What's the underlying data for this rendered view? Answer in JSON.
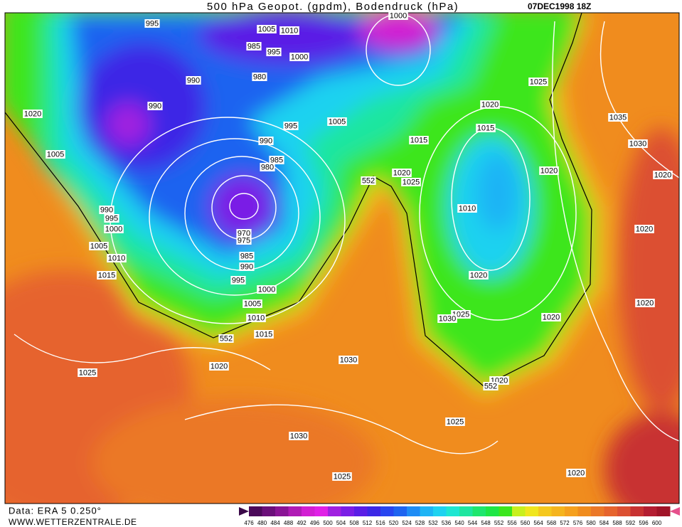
{
  "header": {
    "title": "500 hPa Geopot. (gpdm), Bodendruck (hPa)",
    "date": "07DEC1998 18Z"
  },
  "footer": {
    "source": "Data: ERA 5 0.250°",
    "website": "WWW.WETTERZENTRALE.DE"
  },
  "colorbar": {
    "labels": [
      476,
      480,
      484,
      488,
      492,
      496,
      500,
      504,
      508,
      512,
      516,
      520,
      524,
      528,
      532,
      536,
      540,
      544,
      548,
      552,
      556,
      560,
      564,
      568,
      572,
      576,
      580,
      584,
      588,
      592,
      596,
      600
    ],
    "colors": [
      "#4b0a5a",
      "#6b0f7a",
      "#8a1495",
      "#b01bb5",
      "#d21ed2",
      "#e020e6",
      "#a020e0",
      "#7a1ee6",
      "#5a1ee6",
      "#3c28e6",
      "#2846f0",
      "#1e64f0",
      "#1e8cf5",
      "#1eb4f5",
      "#1ed2f0",
      "#1ee6d2",
      "#1ee6a0",
      "#1ee66e",
      "#1ee646",
      "#3ce61e",
      "#c8f01e",
      "#f0e61e",
      "#f5c81e",
      "#f5b41e",
      "#f5a01e",
      "#f08c1e",
      "#eb7828",
      "#e6642d",
      "#dc5032",
      "#c83232",
      "#b41e32",
      "#a01428"
    ]
  },
  "isobar_labels": [
    "995",
    "1005",
    "1010",
    "985",
    "995",
    "1000",
    "990",
    "980",
    "990",
    "1020",
    "995",
    "1005",
    "990",
    "985",
    "980",
    "1005",
    "1015",
    "1020",
    "1015",
    "1025",
    "1035",
    "1030",
    "1020",
    "1020",
    "1020",
    "1025",
    "552",
    "990",
    "995",
    "1000",
    "1010",
    "1020",
    "970",
    "975",
    "1005",
    "1010",
    "985",
    "990",
    "1015",
    "1020",
    "995",
    "1000",
    "1005",
    "1020",
    "1025",
    "1030",
    "1010",
    "1020",
    "1015",
    "552",
    "1030",
    "1020",
    "1025",
    "1020",
    "552",
    "1025",
    "1030",
    "1025",
    "1020",
    "1000"
  ]
}
